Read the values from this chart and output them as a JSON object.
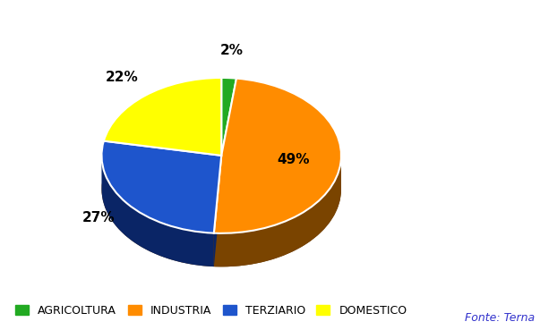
{
  "labels": [
    "AGRICOLTURA",
    "INDUSTRIA",
    "TERZIARIO",
    "DOMESTICO"
  ],
  "values": [
    2,
    49,
    27,
    22
  ],
  "colors": [
    "#22AA22",
    "#FF8C00",
    "#1E55CC",
    "#FFFF00"
  ],
  "dark_colors": [
    "#115511",
    "#7A4400",
    "#0A2566",
    "#888800"
  ],
  "pct_labels": [
    "2%",
    "49%",
    "27%",
    "22%"
  ],
  "startangle": 90,
  "background_color": "#FFFFFF",
  "fonte_text": "Fonte: Terna",
  "fonte_color": "#3333CC",
  "fonte_fontsize": 9,
  "label_fontsize": 11,
  "legend_fontsize": 9,
  "figsize": [
    6.03,
    3.69
  ],
  "dpi": 100
}
